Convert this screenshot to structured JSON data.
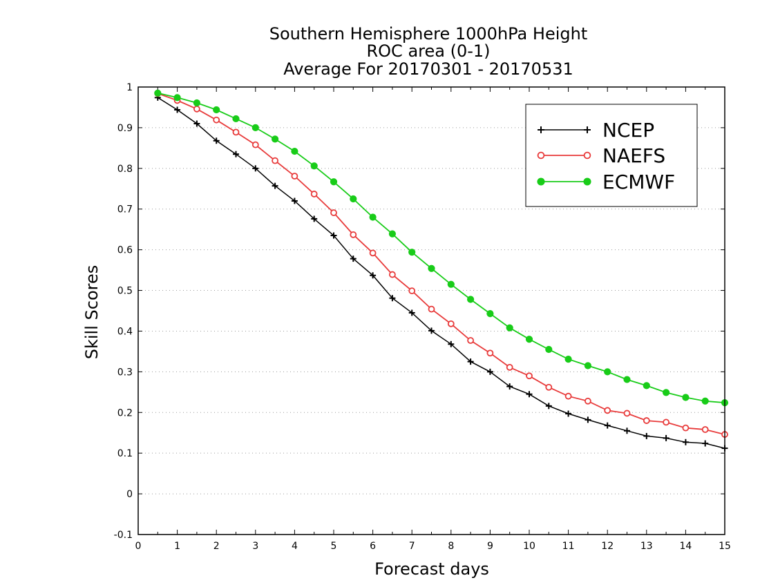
{
  "chart_data": {
    "type": "line",
    "title": [
      "Southern Hemisphere 1000hPa Height",
      "ROC area (0-1)",
      "Average For 20170301 - 20170531"
    ],
    "xlabel": "Forecast days",
    "ylabel": "Skill Scores",
    "xlim": [
      0,
      15
    ],
    "ylim": [
      -0.1,
      1
    ],
    "xticks": [
      0,
      1,
      2,
      3,
      4,
      5,
      6,
      7,
      8,
      9,
      10,
      11,
      12,
      13,
      14,
      15
    ],
    "xtick_labels": [
      "0",
      "1",
      "2",
      "3",
      "4",
      "5",
      "6",
      "7",
      "8",
      "9",
      "10",
      "11",
      "12",
      "13",
      "14",
      "15"
    ],
    "yticks": [
      -0.1,
      0,
      0.1,
      0.2,
      0.3,
      0.4,
      0.5,
      0.6,
      0.7,
      0.8,
      0.9,
      1
    ],
    "ytick_labels": [
      "-0.1",
      "0",
      "0.1",
      "0.2",
      "0.3",
      "0.4",
      "0.5",
      "0.6",
      "0.7",
      "0.8",
      "0.9",
      "1"
    ],
    "grid": "horizontal dotted",
    "legend_position": "top-right",
    "x": [
      0.5,
      1,
      1.5,
      2,
      2.5,
      3,
      3.5,
      4,
      4.5,
      5,
      5.5,
      6,
      6.5,
      7,
      7.5,
      8,
      8.5,
      9,
      9.5,
      10,
      10.5,
      11,
      11.5,
      12,
      12.5,
      13,
      13.5,
      14,
      14.5,
      15
    ],
    "series": [
      {
        "name": "NCEP",
        "color": "#000000",
        "marker": "plus",
        "values": [
          0.974,
          0.944,
          0.91,
          0.868,
          0.835,
          0.8,
          0.757,
          0.72,
          0.676,
          0.635,
          0.578,
          0.537,
          0.481,
          0.445,
          0.401,
          0.368,
          0.325,
          0.3,
          0.264,
          0.245,
          0.216,
          0.197,
          0.182,
          0.168,
          0.155,
          0.142,
          0.137,
          0.127,
          0.124,
          0.112
        ]
      },
      {
        "name": "NAEFS",
        "color": "#e83a3a",
        "marker": "open-circle",
        "values": [
          0.984,
          0.967,
          0.946,
          0.919,
          0.889,
          0.858,
          0.819,
          0.781,
          0.737,
          0.691,
          0.637,
          0.592,
          0.539,
          0.499,
          0.454,
          0.418,
          0.377,
          0.346,
          0.311,
          0.29,
          0.262,
          0.24,
          0.228,
          0.205,
          0.198,
          0.18,
          0.176,
          0.162,
          0.158,
          0.146
        ]
      },
      {
        "name": "ECMWF",
        "color": "#18cc18",
        "marker": "filled-circle",
        "values": [
          0.985,
          0.974,
          0.961,
          0.944,
          0.922,
          0.9,
          0.872,
          0.842,
          0.806,
          0.767,
          0.725,
          0.68,
          0.639,
          0.594,
          0.554,
          0.515,
          0.478,
          0.443,
          0.408,
          0.38,
          0.355,
          0.331,
          0.315,
          0.3,
          0.281,
          0.266,
          0.249,
          0.237,
          0.228,
          0.224
        ]
      }
    ]
  }
}
